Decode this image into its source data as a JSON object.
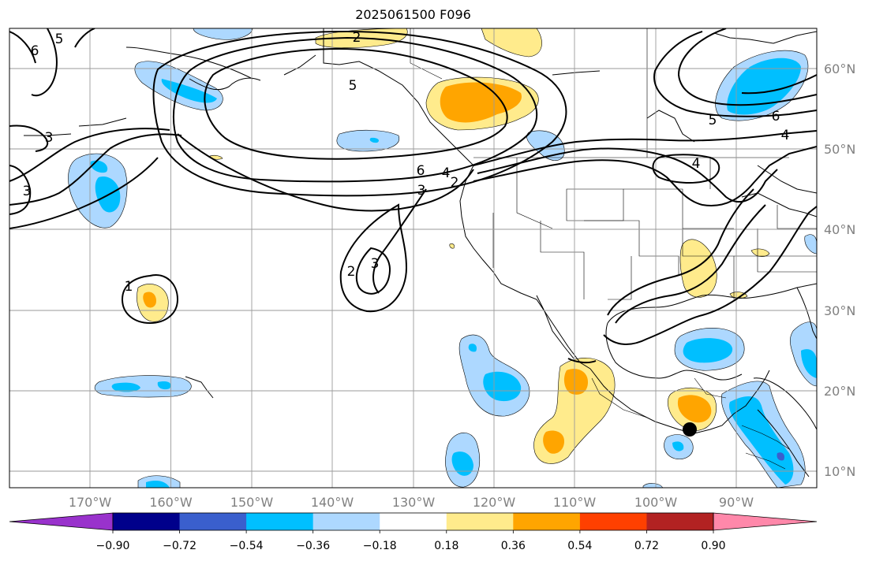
{
  "title": "2025061500 F096",
  "map": {
    "projection": "PlateCarree",
    "extent": {
      "lon_min": -180,
      "lon_max": -80,
      "lat_min": 8,
      "lat_max": 65
    },
    "grid": true,
    "lon_ticks": [
      "170°W",
      "160°W",
      "150°W",
      "140°W",
      "130°W",
      "120°W",
      "110°W",
      "100°W",
      "90°W"
    ],
    "lat_ticks": [
      "60°N",
      "50°N",
      "40°N",
      "30°N",
      "20°N",
      "10°N"
    ],
    "marker": {
      "lon": -95.2,
      "lat": 15.5,
      "symbol": "filled-circle"
    },
    "contour_labels": [
      "2",
      "5",
      "6",
      "3",
      "4",
      "1"
    ]
  },
  "colorbar": {
    "tick_labels": [
      "−0.90",
      "−0.72",
      "−0.54",
      "−0.36",
      "−0.18",
      "0.18",
      "0.36",
      "0.54",
      "0.72",
      "0.90"
    ],
    "colors": [
      "#9932cc",
      "#00008b",
      "#3a5fcd",
      "#00bfff",
      "#add8ff",
      "#ffffff",
      "#ffeb8c",
      "#ffa500",
      "#ff4000",
      "#b22222",
      "#ff88aa"
    ],
    "extend": "both"
  }
}
